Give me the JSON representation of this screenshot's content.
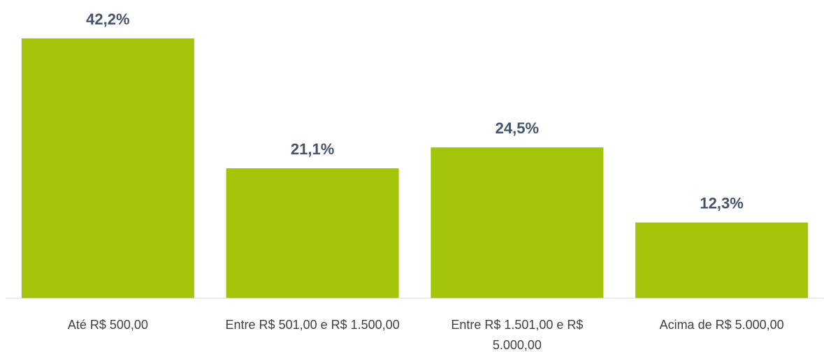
{
  "chart_data": {
    "type": "bar",
    "categories": [
      "Até R$ 500,00",
      "Entre R$ 501,00 e R$ 1.500,00",
      "Entre R$ 1.501,00 e R$ 5.000,00",
      "Acima de R$ 5.000,00"
    ],
    "values": [
      42.2,
      21.1,
      24.5,
      12.3
    ],
    "value_labels": [
      "42,2%",
      "21,1%",
      "24,5%",
      "12,3%"
    ],
    "color": "#a2c50a",
    "ylim": [
      0,
      45
    ]
  }
}
